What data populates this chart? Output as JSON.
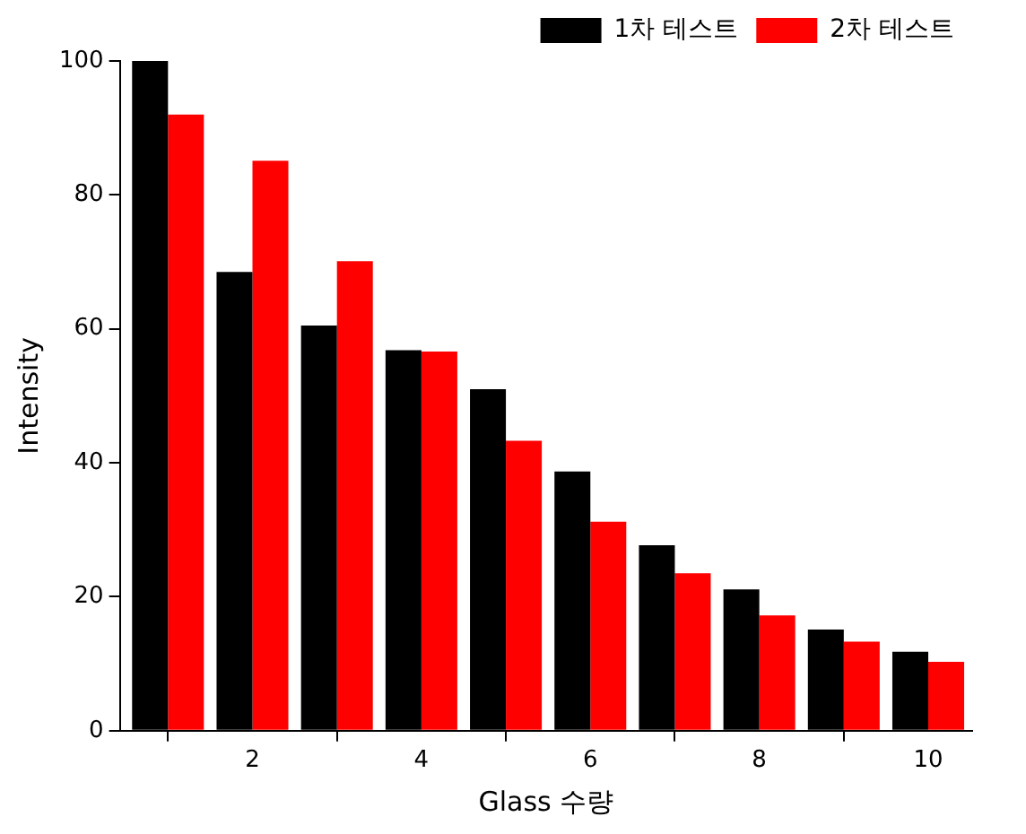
{
  "chart_data": {
    "type": "bar",
    "xlabel": "Glass 수량",
    "ylabel": "Intensity",
    "x": [
      1,
      2,
      3,
      4,
      5,
      6,
      7,
      8,
      9,
      10
    ],
    "series": [
      {
        "name": "1차 테스트",
        "color": "#000000",
        "values": [
          100,
          68.5,
          60.5,
          56.8,
          51,
          38.7,
          27.7,
          21.1,
          15.1,
          11.8
        ]
      },
      {
        "name": "2차 테스트",
        "color": "#ff0000",
        "values": [
          92,
          85.1,
          70.1,
          56.6,
          43.3,
          31.2,
          23.5,
          17.2,
          13.3,
          10.3
        ]
      }
    ],
    "xlim": [
      0.43,
      10.52
    ],
    "xticks": [
      2,
      4,
      6,
      8,
      10
    ],
    "ylim": [
      0,
      100
    ],
    "yticks": [
      0,
      20,
      40,
      60,
      80,
      100
    ],
    "grid": false,
    "legend": "top right"
  }
}
